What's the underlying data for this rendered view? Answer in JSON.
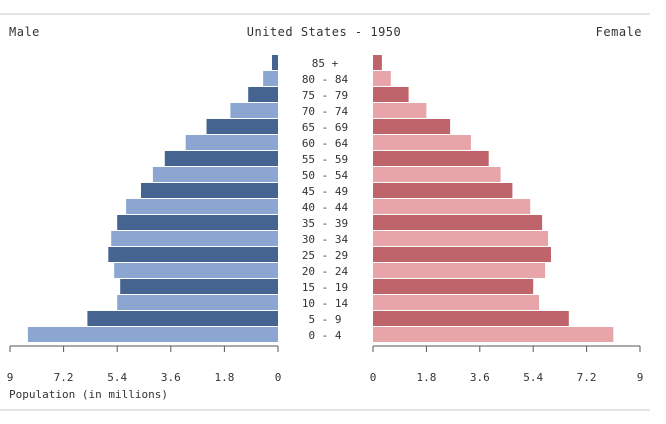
{
  "chart_data": {
    "type": "bar",
    "title": "United States - 1950",
    "left_label": "Male",
    "right_label": "Female",
    "xlabel": "Population (in millions)",
    "xlim": [
      0,
      9
    ],
    "left_ticks": [
      "9",
      "7.2",
      "5.4",
      "3.6",
      "1.8",
      "0"
    ],
    "right_ticks": [
      "0",
      "1.8",
      "3.6",
      "5.4",
      "7.2",
      "9"
    ],
    "categories": [
      "85 +",
      "80 - 84",
      "75 - 79",
      "70 - 74",
      "65 - 69",
      "60 - 64",
      "55 - 59",
      "50 - 54",
      "45 - 49",
      "40 - 44",
      "35 - 39",
      "30 - 34",
      "25 - 29",
      "20 - 24",
      "15 - 19",
      "10 - 14",
      "5 - 9",
      "0 - 4"
    ],
    "series": [
      {
        "name": "Male",
        "values": [
          0.2,
          0.5,
          1.0,
          1.6,
          2.4,
          3.1,
          3.8,
          4.2,
          4.6,
          5.1,
          5.4,
          5.6,
          5.7,
          5.5,
          5.3,
          5.4,
          6.4,
          8.4
        ]
      },
      {
        "name": "Female",
        "values": [
          0.3,
          0.6,
          1.2,
          1.8,
          2.6,
          3.3,
          3.9,
          4.3,
          4.7,
          5.3,
          5.7,
          5.9,
          6.0,
          5.8,
          5.4,
          5.6,
          6.6,
          8.1
        ]
      }
    ],
    "colors": {
      "male_dark": "#45648f",
      "male_light": "#8ba7d1",
      "female_dark": "#c0646b",
      "female_light": "#e8a5a9"
    }
  }
}
